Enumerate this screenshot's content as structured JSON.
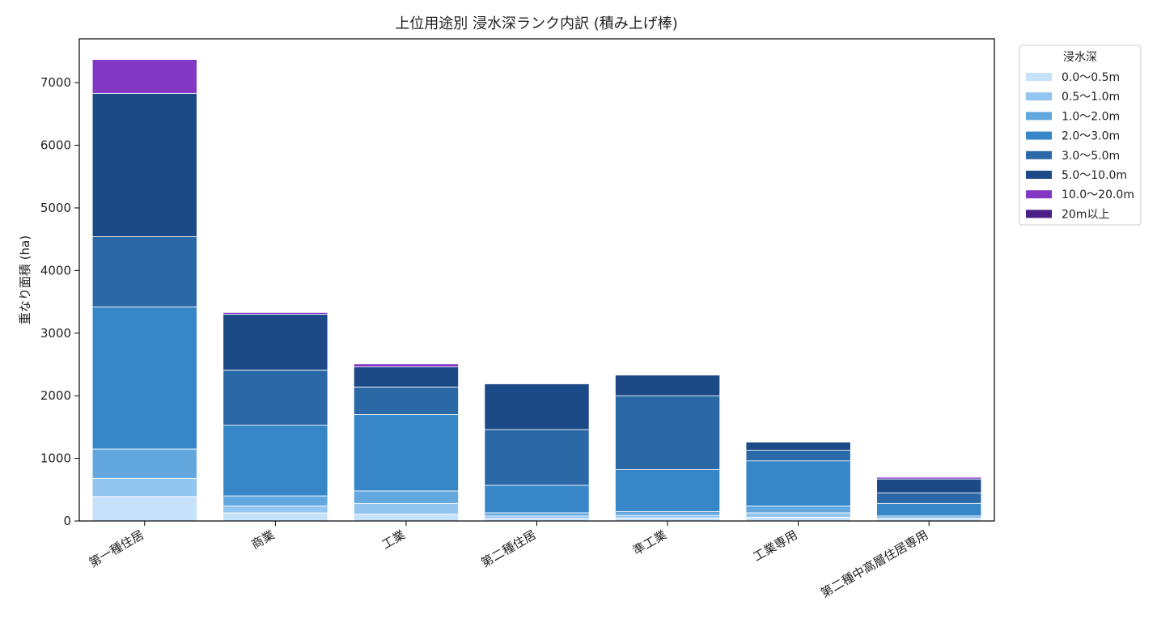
{
  "chart_data": {
    "type": "bar",
    "stacked": true,
    "title": "上位用途別 浸水深ランク内訳 (積み上げ棒)",
    "xlabel": "",
    "ylabel": "重なり面積 (ha)",
    "ylim": [
      0,
      7700
    ],
    "yticks": [
      "0",
      "1000",
      "2000",
      "3000",
      "4000",
      "5000",
      "6000",
      "7000"
    ],
    "grid": false,
    "legend_title": "浸水深",
    "legend_position": "outside-top-right",
    "categories": [
      "第一種住居",
      "商業",
      "工業",
      "第二種住居",
      "準工業",
      "工業専用",
      "第二種中高層住居専用"
    ],
    "series": [
      {
        "name": "0.0〜0.5m",
        "color": "#c6e2fb",
        "values": [
          390,
          130,
          110,
          40,
          50,
          60,
          30
        ]
      },
      {
        "name": "0.5〜1.0m",
        "color": "#92c5ef",
        "values": [
          290,
          110,
          170,
          40,
          40,
          70,
          20
        ]
      },
      {
        "name": "1.0〜2.0m",
        "color": "#62a8df",
        "values": [
          470,
          160,
          200,
          50,
          60,
          110,
          30
        ]
      },
      {
        "name": "2.0〜3.0m",
        "color": "#3787c8",
        "values": [
          2270,
          1130,
          1220,
          440,
          670,
          720,
          200
        ]
      },
      {
        "name": "3.0〜5.0m",
        "color": "#2a69a6",
        "values": [
          1120,
          880,
          440,
          890,
          1180,
          170,
          170
        ]
      },
      {
        "name": "5.0〜10.0m",
        "color": "#1c4a86",
        "values": [
          2290,
          890,
          320,
          730,
          330,
          130,
          220
        ]
      },
      {
        "name": "10.0〜20.0m",
        "color": "#8338c4",
        "values": [
          540,
          30,
          50,
          0,
          0,
          0,
          30
        ]
      },
      {
        "name": "20m以上",
        "color": "#4b1d87",
        "values": [
          0,
          5,
          5,
          0,
          0,
          0,
          5
        ]
      }
    ]
  }
}
